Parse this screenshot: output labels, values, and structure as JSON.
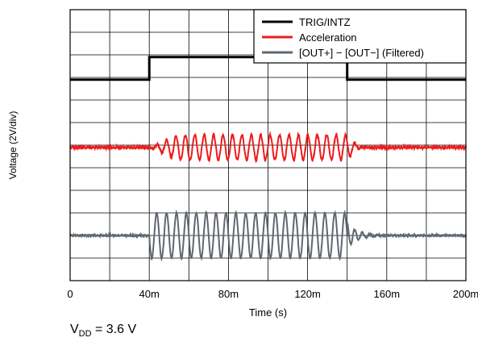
{
  "chart_data": {
    "type": "line",
    "xlabel": "Time (s)",
    "ylabel": "Voltage (2V/div)",
    "xlim": [
      0,
      0.2
    ],
    "x_ticks": [
      {
        "value": 0,
        "label": "0"
      },
      {
        "value": 0.04,
        "label": "40m"
      },
      {
        "value": 0.08,
        "label": "80m"
      },
      {
        "value": 0.12,
        "label": "120m"
      },
      {
        "value": 0.16,
        "label": "160m"
      },
      {
        "value": 0.2,
        "label": "200m"
      }
    ],
    "y_divisions": 12,
    "grid": true,
    "legend_position": "top-right",
    "series": [
      {
        "name": "TRIG/INTZ",
        "color": "#000000",
        "kind": "step",
        "low_div": 8.9,
        "high_div": 9.9,
        "high_from": 0.04,
        "high_to": 0.14
      },
      {
        "name": "Acceleration",
        "color": "#ee1c1c",
        "kind": "burst",
        "baseline_div": 5.9,
        "amplitude_div": 0.55,
        "burst_start": 0.038,
        "burst_end": 0.148,
        "ramp_up_end": 0.057,
        "ramp_down_start": 0.138,
        "frequency_hz": 210
      },
      {
        "name": "[OUT+] − [OUT−] (Filtered)",
        "color": "#5f6772",
        "kind": "burst",
        "baseline_div": 2.0,
        "amplitude_div": 1.0,
        "burst_start": 0.04,
        "burst_end": 0.14,
        "frequency_hz": 200,
        "ringdown_end": 0.157
      }
    ]
  },
  "footnote": {
    "symbol": "V",
    "subscript": "DD",
    "text": " = 3.6 V"
  }
}
